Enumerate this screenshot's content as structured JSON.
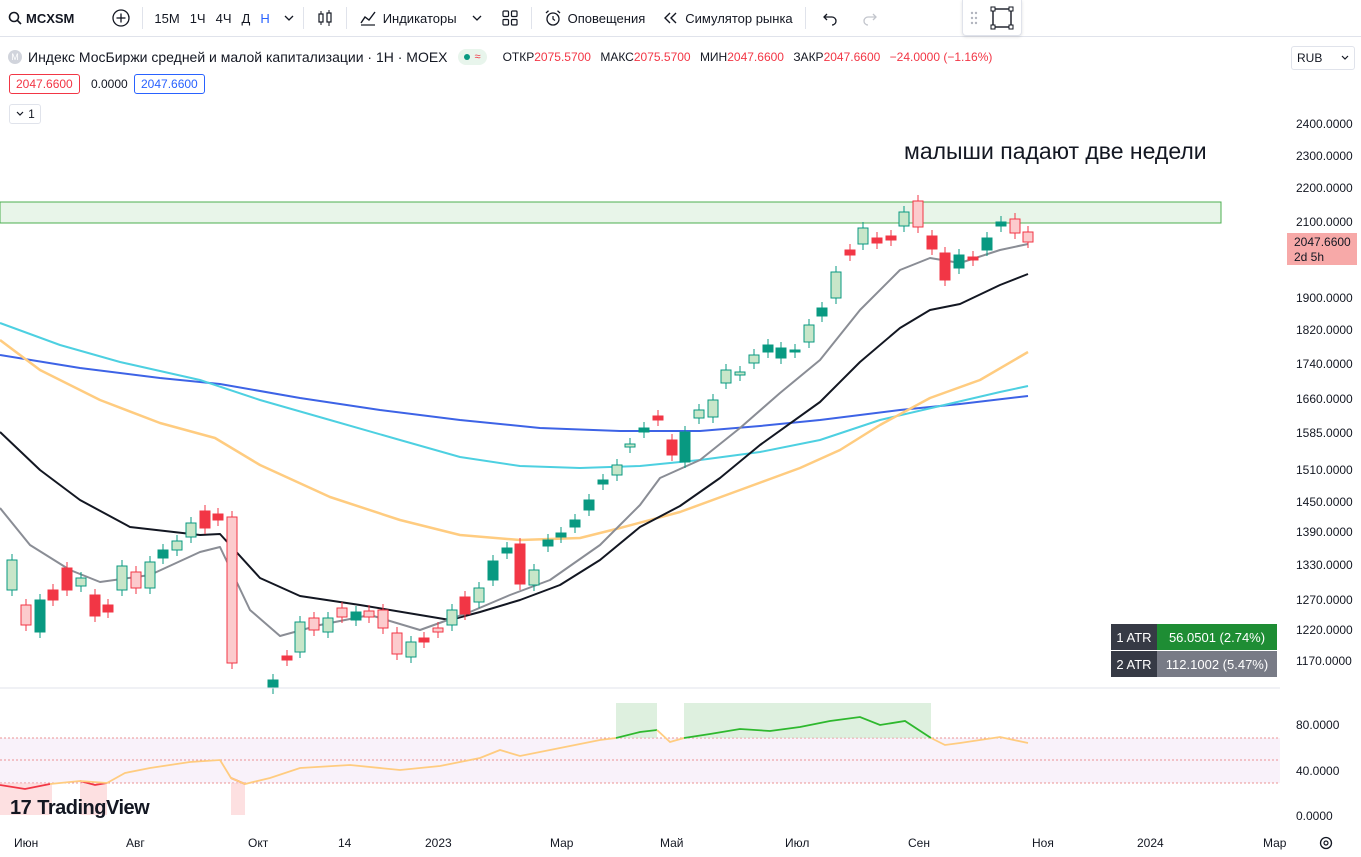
{
  "toolbar": {
    "symbol": "MCXSM",
    "intervals": [
      "15M",
      "1Ч",
      "4Ч",
      "Д",
      "Н"
    ],
    "active_interval": "Н",
    "indicators_label": "Индикаторы",
    "alerts_label": "Оповещения",
    "replay_label": "Симулятор рынка"
  },
  "legend": {
    "title": "Индекс МосБиржи средней и малой капитализации · 1Н · MOEX",
    "badge": "≈",
    "ohlc": {
      "open_label": "ОТКР",
      "open": "2075.5700",
      "high_label": "МАКС",
      "high": "2075.5700",
      "low_label": "МИН",
      "low": "2047.6600",
      "close_label": "ЗАКР",
      "close": "2047.6600",
      "change": "−24.0000 (−1.16%)"
    },
    "sell_price": "2047.6600",
    "spread": "0.0000",
    "buy_price": "2047.6600",
    "collapse_count": "1"
  },
  "currency": "RUB",
  "annotation": "малыши падают две недели",
  "price_axis": [
    "2400.0000",
    "2300.0000",
    "2200.0000",
    "2100.0000",
    "1900.0000",
    "1820.0000",
    "1740.0000",
    "1660.0000",
    "1585.0000",
    "1510.0000",
    "1450.0000",
    "1390.0000",
    "1330.0000",
    "1270.0000",
    "1220.0000",
    "1170.0000"
  ],
  "indicator_axis": [
    "80.0000",
    "40.0000",
    "0.0000"
  ],
  "last_price": "2047.6600",
  "last_price_countdown": "2d 5h",
  "time_axis": [
    "Июн",
    "Авг",
    "Окт",
    "14",
    "2023",
    "Мар",
    "Май",
    "Июл",
    "Сен",
    "Ноя",
    "2024",
    "Мар"
  ],
  "atr": [
    {
      "label": "1 ATR",
      "value": "56.0501 (2.74%)",
      "color": "#1e8d34"
    },
    {
      "label": "2 ATR",
      "value": "112.1002 (5.47%)",
      "color": "#787b86"
    }
  ],
  "logo": "TradingView",
  "colors": {
    "up": "#089981",
    "up_hollow": "#c8e6c9",
    "down": "#f23645",
    "down_hollow": "#fccbcd",
    "ma_black": "#131722",
    "ma_gray": "#8a8d95",
    "ma_orange": "#ffcc80",
    "ma_cyan": "#4dd0e1",
    "ma_blue": "#3d63e6",
    "zone": "#e8f5e9",
    "zone_border": "#4caf50"
  }
}
